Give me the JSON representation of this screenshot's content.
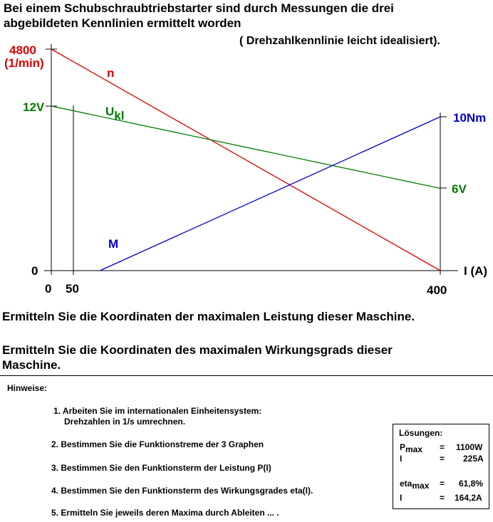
{
  "header": {
    "line1": "Bei einem Schubschraubtriebstarter sind durch Messungen die drei",
    "line2": "abgebildeten Kennlinien ermittelt worden",
    "note": "( Drehzahlkennlinie leicht idealisiert)."
  },
  "chart_data": {
    "type": "line",
    "x_axis": {
      "label": "I (A)",
      "ticks": [
        "0",
        "50",
        "400"
      ],
      "range": [
        0,
        400
      ]
    },
    "left_labels": {
      "speed_max": "4800",
      "speed_unit": "(1/min)",
      "voltage_max": "12V",
      "zero": "0"
    },
    "right_labels": {
      "torque_max": "10Nm",
      "voltage_min": "6V"
    },
    "series": [
      {
        "name": "n",
        "color": "#e00000",
        "x": [
          0,
          400
        ],
        "y": [
          4800,
          0
        ]
      },
      {
        "name": "U",
        "name_sub": "kl",
        "color": "#007a00",
        "x": [
          0,
          400
        ],
        "y": [
          12,
          6
        ]
      },
      {
        "name": "M",
        "color": "#0000cc",
        "x": [
          50,
          400
        ],
        "y": [
          0,
          10
        ]
      }
    ]
  },
  "questions": {
    "q1": "Ermitteln Sie die Koordinaten der maximalen Leistung dieser Maschine.",
    "q2a": "Ermitteln Sie die Koordinaten des maximalen Wirkungsgrads dieser",
    "q2b": "Maschine."
  },
  "hints": {
    "title": "Hinweise:",
    "h1a": "1.  Arbeiten Sie im internationalen Einheitensystem:",
    "h1b": "Drehzahlen in 1/s umrechnen.",
    "h2": "2. Bestimmen Sie die Funktionstreme der 3 Graphen",
    "h3": "3. Bestimmen Sie den Funktionsterm der Leistung P(I)",
    "h4": "4. Bestimmen Sie den Funktionsterm des Wirkungsgrades eta(I).",
    "h5": "5. Ermitteln Sie jeweils deren Maxima durch Ableiten ... ."
  },
  "solutions": {
    "title": "Lösungen:",
    "p_sym": "P",
    "p_sub": "max",
    "eq": "=",
    "p_val": "1100W",
    "i_sym": "I",
    "i1_val": "225A",
    "eta_sym": "eta",
    "eta_sub": "max",
    "eta_val": "61,8%",
    "i2_val": "164,2A"
  }
}
